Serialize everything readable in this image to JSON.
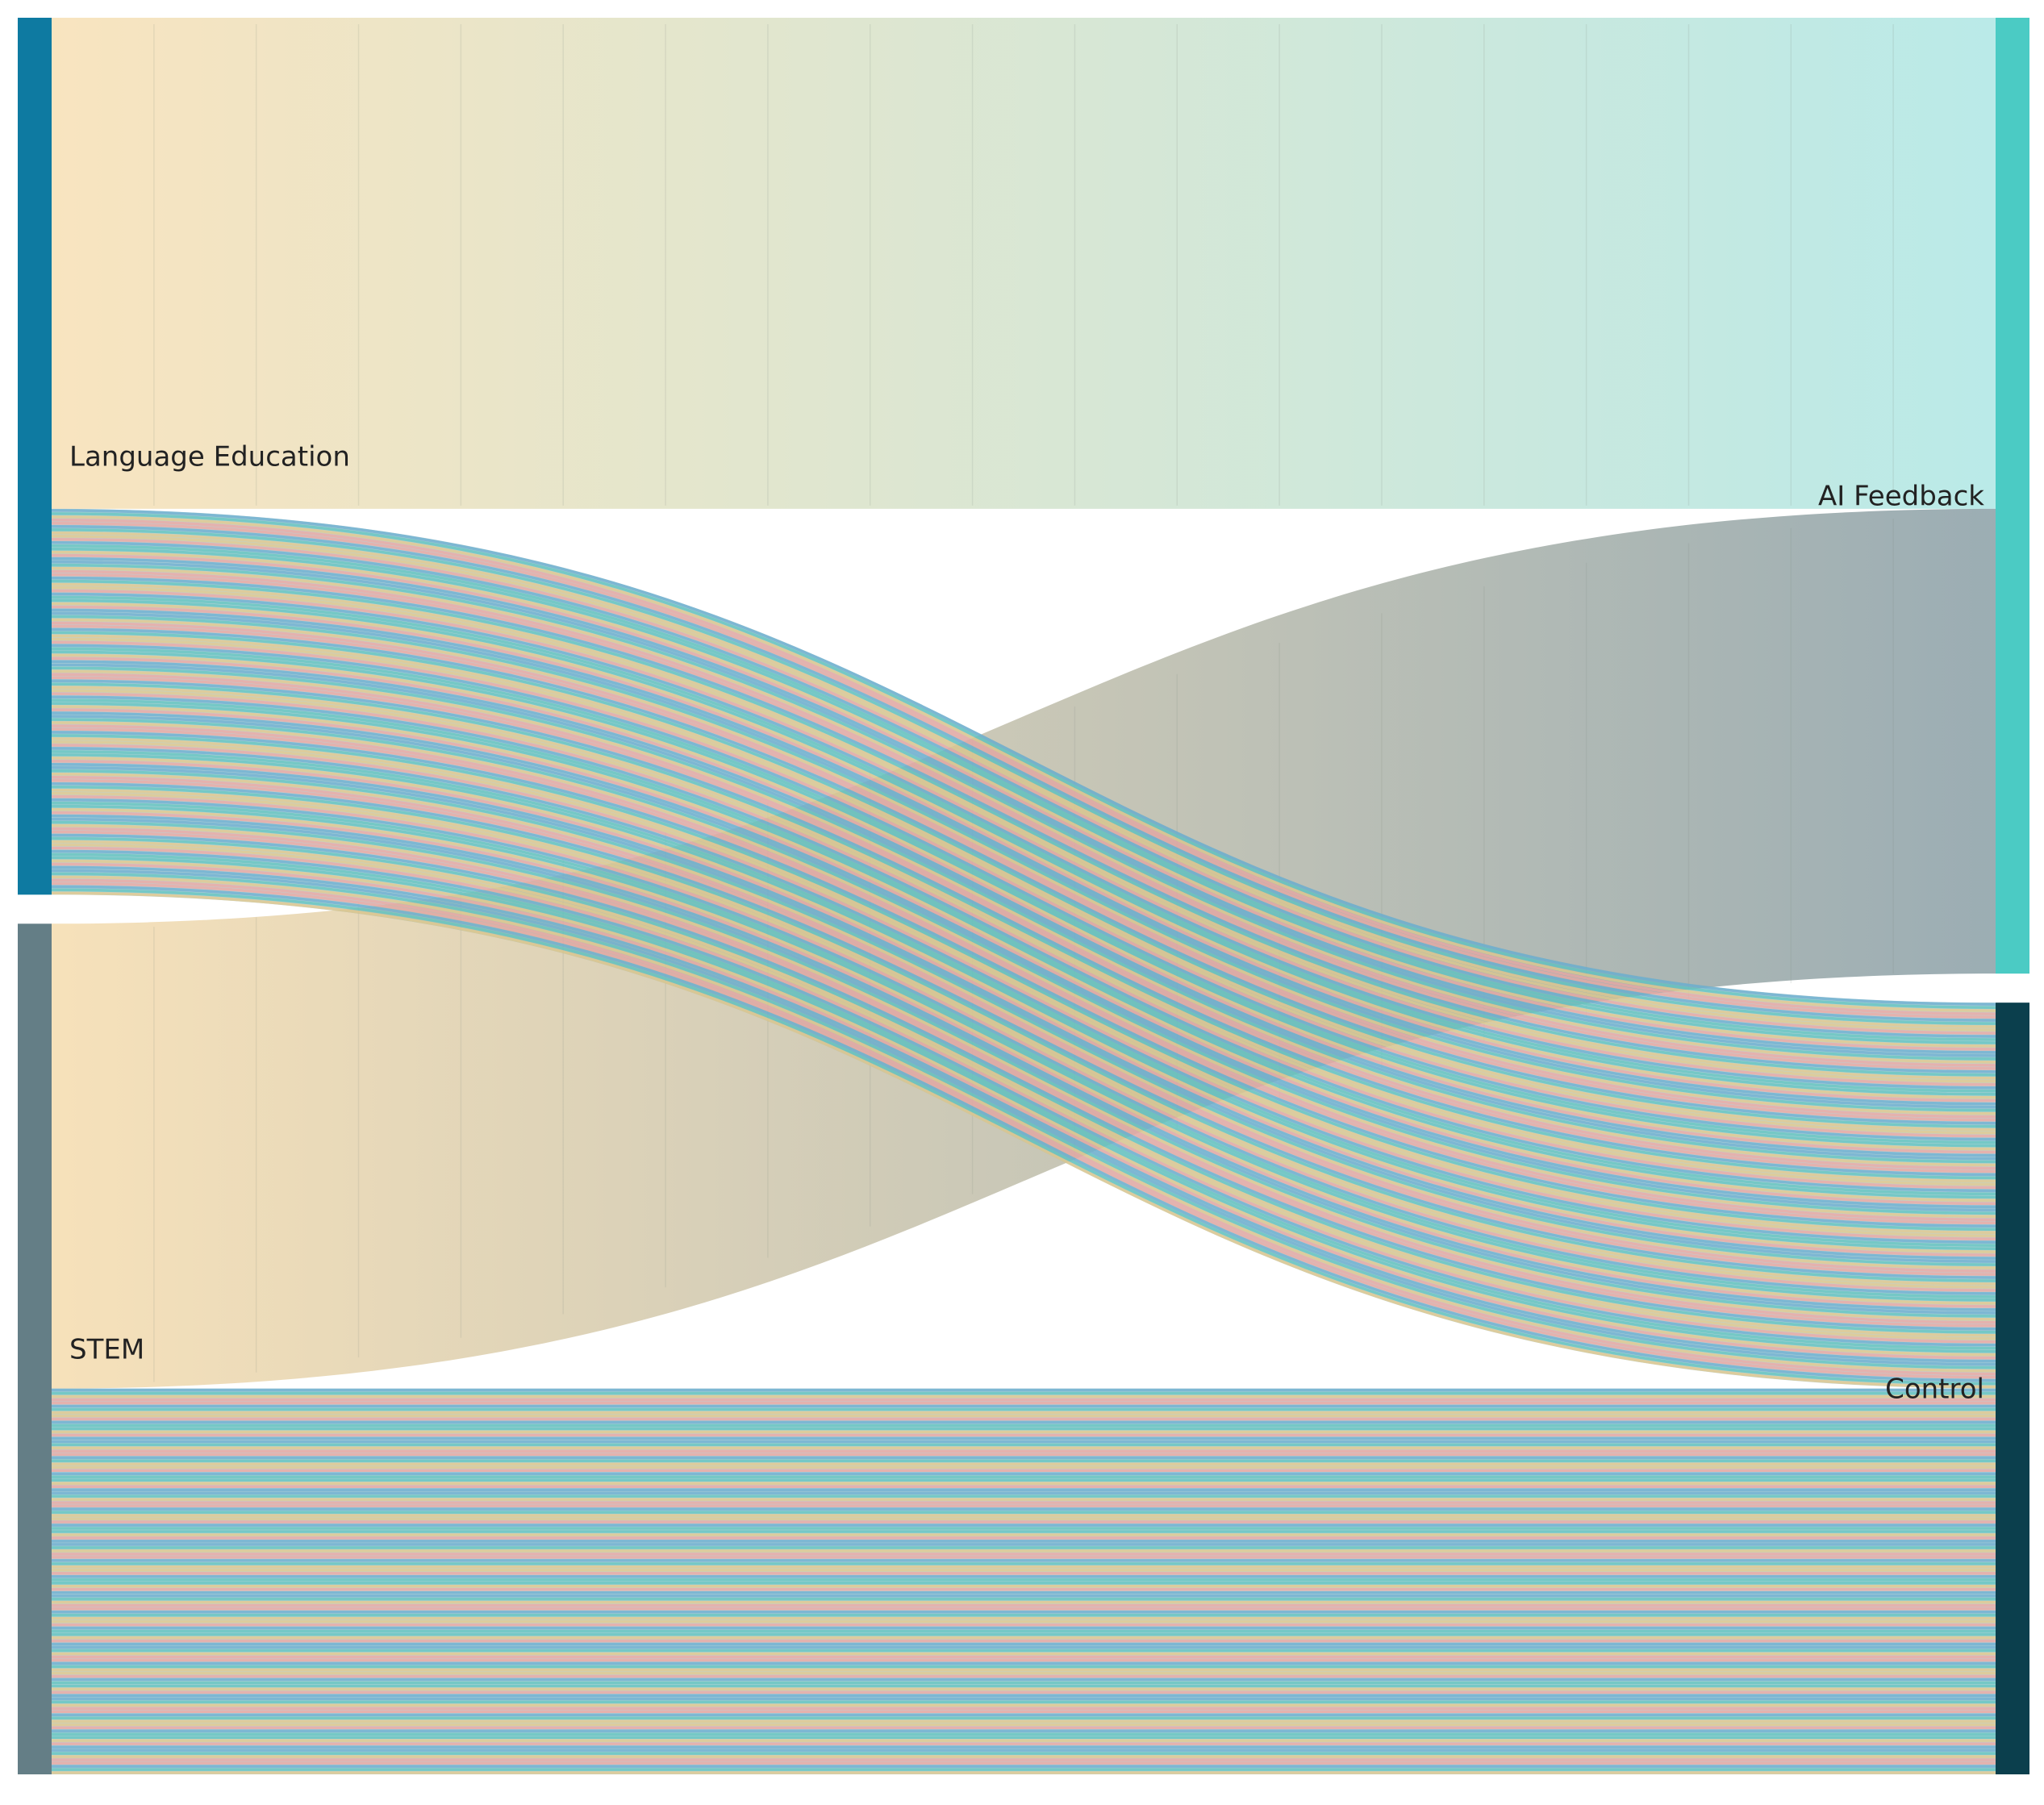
{
  "chart_data": {
    "type": "sankey",
    "nodes": [
      {
        "id": "language",
        "label": "Language Education",
        "side": "left",
        "color": "#0e7aa1"
      },
      {
        "id": "stem",
        "label": "STEM",
        "side": "left",
        "color": "#647e86"
      },
      {
        "id": "ai",
        "label": "AI Feedback",
        "side": "right",
        "color": "#4bcbc4"
      },
      {
        "id": "control",
        "label": "Control",
        "side": "right",
        "color": "#0b3f4d"
      }
    ],
    "links": [
      {
        "source": "language",
        "target": "ai",
        "value": 56,
        "style": "solid",
        "colors": [
          "#f7dfb4",
          "#aee6e4"
        ]
      },
      {
        "source": "language",
        "target": "control",
        "value": 44,
        "style": "striped",
        "colors": [
          "#6aaed2",
          "#f3a7a0",
          "#e8c98a",
          "#5fc4c0"
        ]
      },
      {
        "source": "stem",
        "target": "ai",
        "value": 53,
        "style": "solid",
        "colors": [
          "#f5dcae",
          "#8a9fa6"
        ]
      },
      {
        "source": "stem",
        "target": "control",
        "value": 44,
        "style": "striped",
        "colors": [
          "#6aaed2",
          "#f3a7a0",
          "#e8c98a",
          "#5fc4c0"
        ]
      }
    ]
  }
}
